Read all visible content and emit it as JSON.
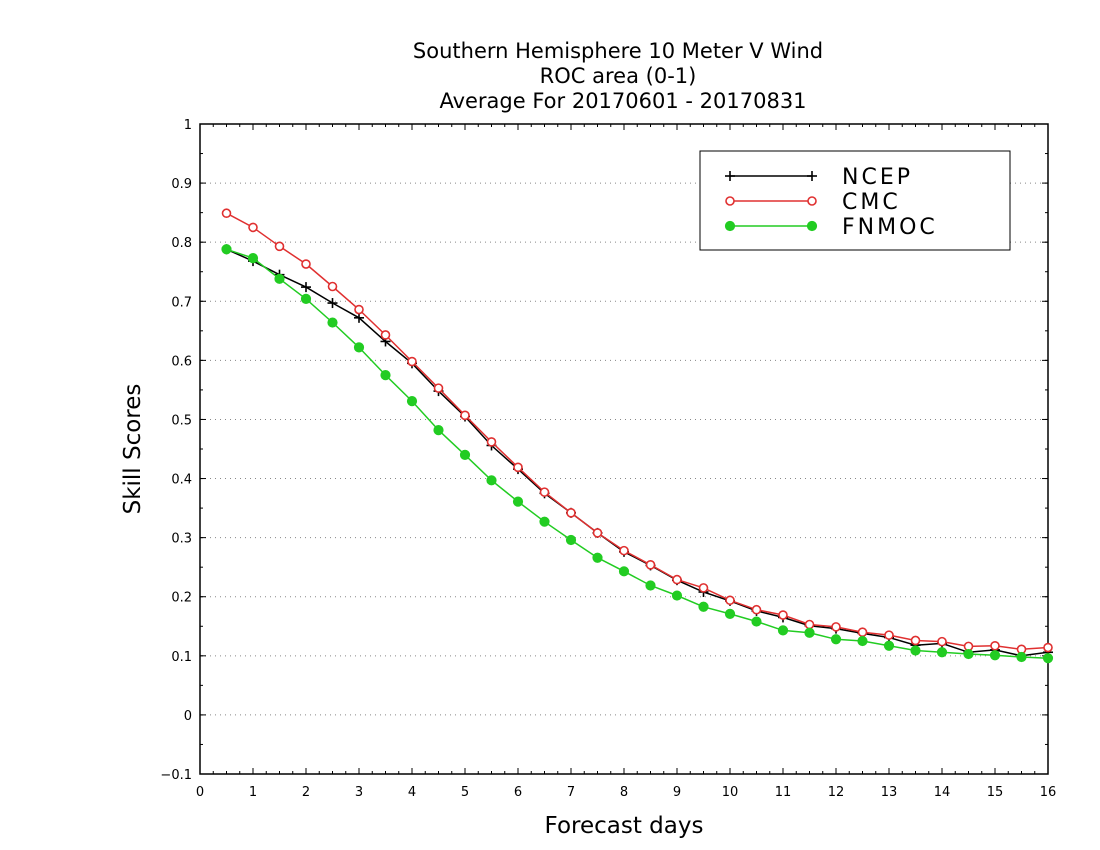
{
  "chart_data": {
    "type": "line",
    "title": [
      "Southern Hemisphere 10 Meter V Wind",
      "ROC area (0-1)",
      "Average For 20170601 - 20170831"
    ],
    "xlabel": "Forecast days",
    "ylabel": "Skill Scores",
    "xlim": [
      0,
      16
    ],
    "ylim": [
      -0.1,
      1
    ],
    "xticks": [
      "0",
      "1",
      "2",
      "3",
      "4",
      "5",
      "6",
      "7",
      "8",
      "9",
      "10",
      "11",
      "12",
      "13",
      "14",
      "15",
      "16"
    ],
    "yticks": [
      "−0.1",
      "0",
      "0.1",
      "0.2",
      "0.3",
      "0.4",
      "0.5",
      "0.6",
      "0.7",
      "0.8",
      "0.9",
      "1"
    ],
    "grid": true,
    "legend_position": "top-right",
    "x": [
      0.5,
      1,
      1.5,
      2,
      2.5,
      3,
      3.5,
      4,
      4.5,
      5,
      5.5,
      6,
      6.5,
      7,
      7.5,
      8,
      8.5,
      9,
      9.5,
      10,
      10.5,
      11,
      11.5,
      12,
      12.5,
      13,
      13.5,
      14,
      14.5,
      15,
      15.5,
      16
    ],
    "series": [
      {
        "name": "NCEP",
        "color": "#000000",
        "marker": "plus",
        "values": [
          0.788,
          0.768,
          0.745,
          0.724,
          0.697,
          0.672,
          0.632,
          0.595,
          0.548,
          0.505,
          0.456,
          0.416,
          0.375,
          0.342,
          0.308,
          0.276,
          0.253,
          0.228,
          0.208,
          0.193,
          0.176,
          0.165,
          0.151,
          0.146,
          0.138,
          0.131,
          0.118,
          0.121,
          0.106,
          0.11,
          0.1,
          0.106
        ]
      },
      {
        "name": "CMC",
        "color": "#e03030",
        "marker": "open-circle",
        "values": [
          0.849,
          0.825,
          0.793,
          0.763,
          0.725,
          0.686,
          0.643,
          0.598,
          0.553,
          0.507,
          0.462,
          0.419,
          0.377,
          0.342,
          0.308,
          0.278,
          0.254,
          0.229,
          0.215,
          0.194,
          0.178,
          0.169,
          0.153,
          0.149,
          0.14,
          0.135,
          0.126,
          0.124,
          0.116,
          0.117,
          0.111,
          0.114
        ]
      },
      {
        "name": "FNMOC",
        "color": "#22cc22",
        "marker": "filled-circle",
        "values": [
          0.788,
          0.773,
          0.738,
          0.704,
          0.664,
          0.622,
          0.575,
          0.531,
          0.482,
          0.44,
          0.397,
          0.361,
          0.327,
          0.296,
          0.266,
          0.243,
          0.219,
          0.202,
          0.183,
          0.171,
          0.158,
          0.143,
          0.139,
          0.128,
          0.125,
          0.117,
          0.109,
          0.106,
          0.103,
          0.101,
          0.098,
          0.096
        ]
      }
    ]
  }
}
